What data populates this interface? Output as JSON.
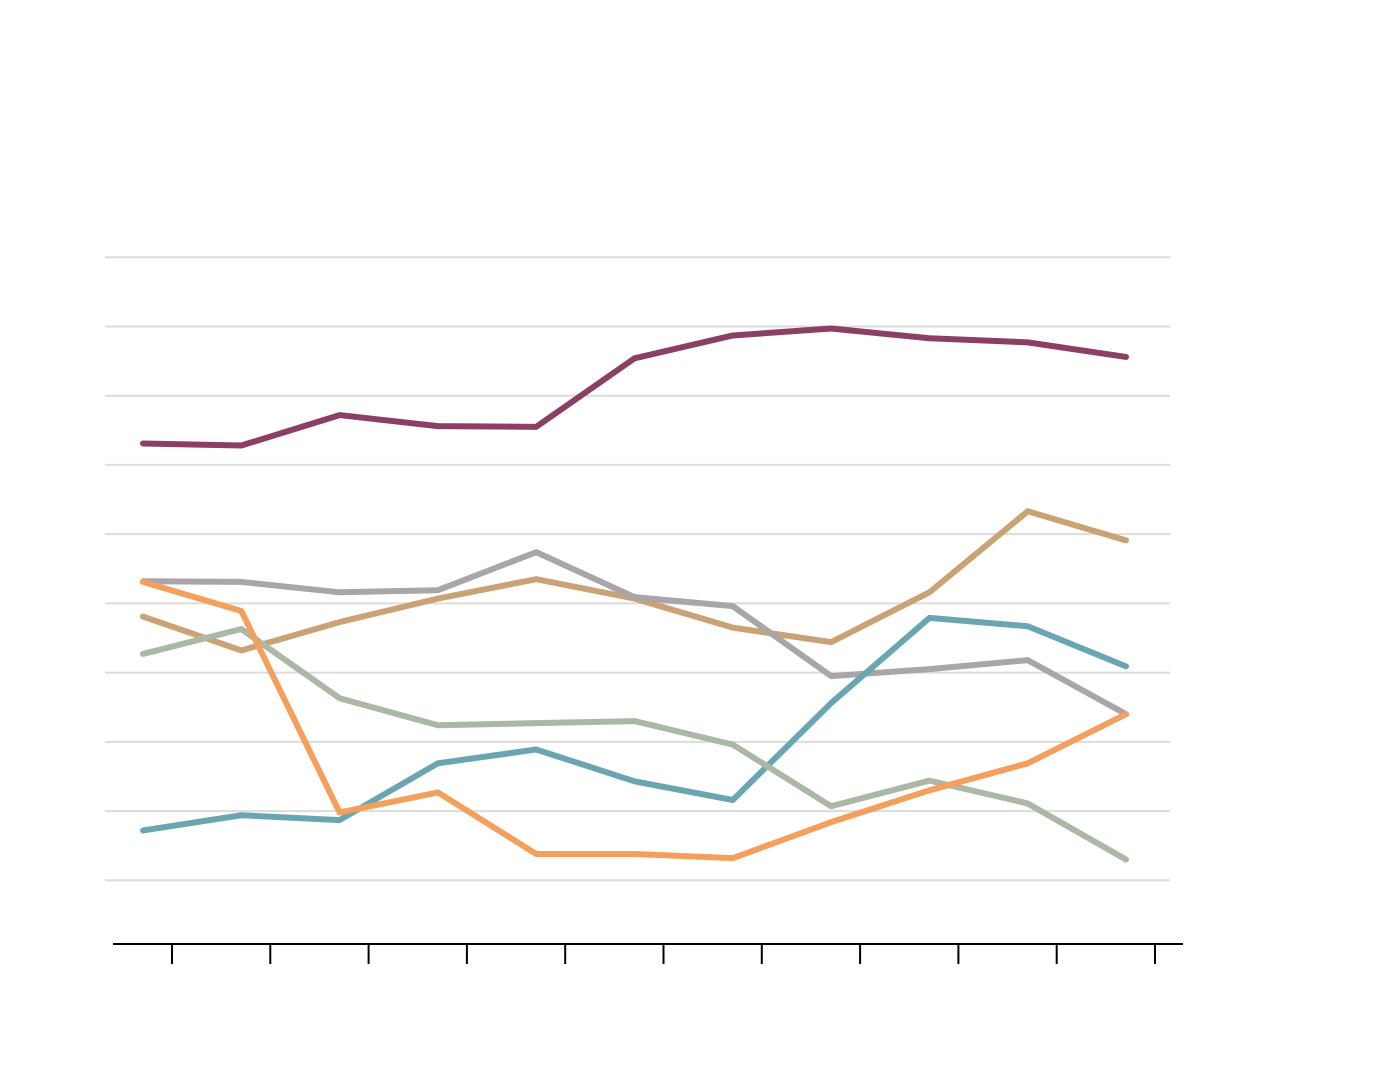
{
  "chart_data": {
    "type": "line",
    "categories": [
      null,
      null,
      null,
      null,
      null,
      null,
      null,
      null,
      null,
      null,
      null
    ],
    "series": [
      {
        "color": "#8b3f62",
        "values": [
          6.31,
          6.28,
          6.72,
          6.56,
          6.55,
          7.54,
          7.87,
          7.97,
          7.83,
          7.77,
          7.56
        ]
      },
      {
        "color": "#c9a375",
        "values": [
          3.81,
          3.32,
          3.73,
          4.07,
          4.35,
          4.07,
          3.65,
          3.44,
          4.16,
          5.33,
          4.91
        ]
      },
      {
        "color": "#a8a6a8",
        "values": [
          4.32,
          4.31,
          4.16,
          4.19,
          4.74,
          4.09,
          3.96,
          2.95,
          3.05,
          3.18,
          2.4
        ]
      },
      {
        "color": "#6aa6b2",
        "values": [
          0.72,
          0.94,
          0.87,
          1.69,
          1.89,
          1.43,
          1.16,
          2.56,
          3.79,
          3.67,
          3.09
        ]
      },
      {
        "color": "#abb8a5",
        "values": [
          3.27,
          3.63,
          2.63,
          2.24,
          2.27,
          2.3,
          1.96,
          1.07,
          1.44,
          1.11,
          0.3
        ]
      },
      {
        "color": "#f4a05c",
        "values": [
          4.31,
          3.89,
          0.98,
          1.27,
          0.38,
          0.38,
          0.32,
          0.84,
          1.3,
          1.69,
          2.4
        ]
      }
    ],
    "ylim": [
      -0.92,
      10
    ],
    "yticks": [
      0,
      1,
      2,
      3,
      4,
      5,
      6,
      7,
      8,
      9
    ],
    "grid": true
  }
}
